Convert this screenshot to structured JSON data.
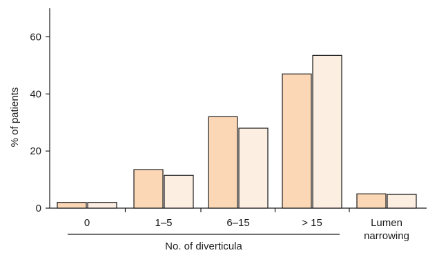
{
  "chart_data": {
    "type": "bar",
    "ylabel": "% of patients",
    "xlabel": "",
    "ylim": [
      0,
      70
    ],
    "yticks": [
      0,
      20,
      40,
      60
    ],
    "categories": [
      "0",
      "1–5",
      "6–15",
      "> 15",
      "Lumen narrowing"
    ],
    "category_lines": [
      [
        "0"
      ],
      [
        "1–5"
      ],
      [
        "6–15"
      ],
      [
        "> 15"
      ],
      [
        "Lumen",
        "narrowing"
      ]
    ],
    "series": [
      {
        "values": [
          2,
          13.5,
          32,
          47,
          5
        ]
      },
      {
        "values": [
          2,
          11.5,
          28,
          53.5,
          4.8
        ]
      }
    ],
    "group_label": "No. of diverticula",
    "group_categories": [
      "0",
      "1–5",
      "6–15",
      "> 15"
    ],
    "grid": false,
    "legend": "none"
  },
  "colors": {
    "series": [
      "#fcd7b6",
      "#fdeee2"
    ],
    "stroke": "#1a1a1a"
  }
}
